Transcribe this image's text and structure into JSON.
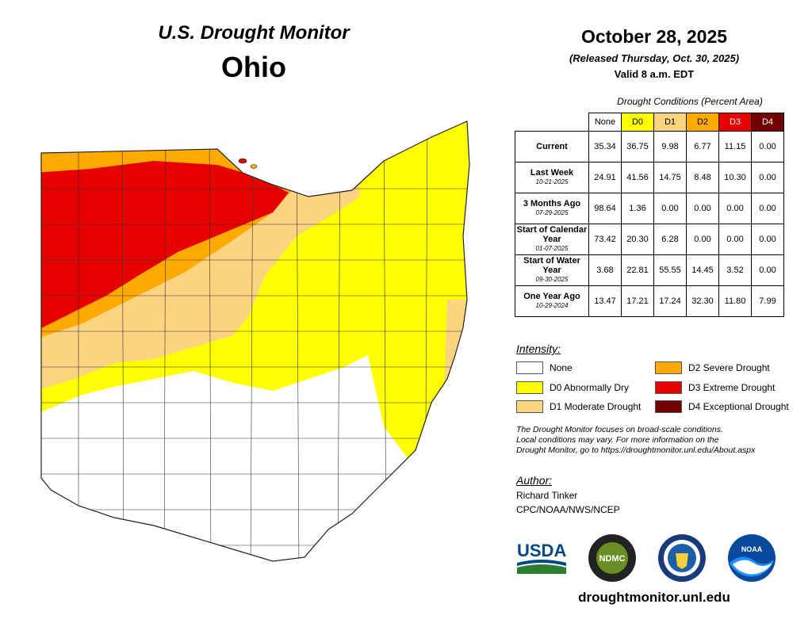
{
  "header": {
    "title": "U.S. Drought Monitor",
    "state": "Ohio",
    "date": "October 28, 2025",
    "released": "(Released Thursday, Oct. 30, 2025)",
    "valid": "Valid 8 a.m. EDT"
  },
  "table": {
    "caption": "Drought Conditions (Percent Area)",
    "columns": [
      "None",
      "D0",
      "D1",
      "D2",
      "D3",
      "D4"
    ],
    "column_colors": [
      "#ffffff",
      "#ffff00",
      "#fcd37f",
      "#ffaa00",
      "#e60000",
      "#730000"
    ],
    "rows": [
      {
        "label": "Current",
        "sub": "",
        "values": [
          "35.34",
          "36.75",
          "9.98",
          "6.77",
          "11.15",
          "0.00"
        ]
      },
      {
        "label": "Last Week",
        "sub": "10-21-2025",
        "values": [
          "24.91",
          "41.56",
          "14.75",
          "8.48",
          "10.30",
          "0.00"
        ]
      },
      {
        "label": "3 Months Ago",
        "sub": "07-29-2025",
        "values": [
          "98.64",
          "1.36",
          "0.00",
          "0.00",
          "0.00",
          "0.00"
        ]
      },
      {
        "label": "Start of Calendar Year",
        "sub": "01-07-2025",
        "values": [
          "73.42",
          "20.30",
          "6.28",
          "0.00",
          "0.00",
          "0.00"
        ]
      },
      {
        "label": "Start of Water Year",
        "sub": "09-30-2025",
        "values": [
          "3.68",
          "22.81",
          "55.55",
          "14.45",
          "3.52",
          "0.00"
        ]
      },
      {
        "label": "One Year Ago",
        "sub": "10-29-2024",
        "values": [
          "13.47",
          "17.21",
          "17.24",
          "32.30",
          "11.80",
          "7.99"
        ]
      }
    ]
  },
  "intensity": {
    "title": "Intensity:",
    "items": [
      {
        "label": "None",
        "color": "#ffffff"
      },
      {
        "label": "D0 Abnormally Dry",
        "color": "#ffff00"
      },
      {
        "label": "D1 Moderate Drought",
        "color": "#fcd37f"
      },
      {
        "label": "D2 Severe Drought",
        "color": "#ffaa00"
      },
      {
        "label": "D3 Extreme Drought",
        "color": "#e60000"
      },
      {
        "label": "D4 Exceptional Drought",
        "color": "#730000"
      }
    ]
  },
  "note": {
    "line1": "The Drought Monitor focuses on broad-scale conditions.",
    "line2": "Local conditions may vary. For more information on the",
    "line3": "Drought Monitor, go to https://droughtmonitor.unl.edu/About.aspx"
  },
  "author": {
    "title": "Author:",
    "name": "Richard Tinker",
    "org": "CPC/NOAA/NWS/NCEP"
  },
  "logos": {
    "usda": "USDA",
    "ndmc": "NDMC",
    "noaa": "NOAA"
  },
  "footer_url": "droughtmonitor.unl.edu"
}
